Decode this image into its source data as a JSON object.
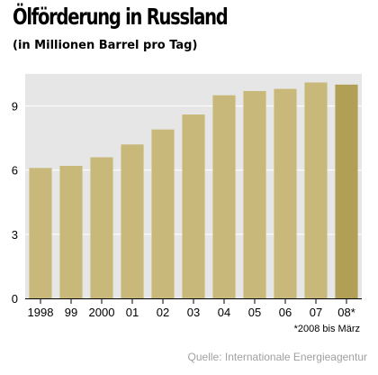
{
  "title": "Ölförderung in Russland",
  "subtitle": "(in Millionen Barrel pro Tag)",
  "footnote": "*2008 bis März",
  "source": "Quelle: Internationale Energieagentur",
  "colors": {
    "bar": "#c8b97a",
    "bar_highlight": "#b09f55",
    "plot_background": "#e6e6e6",
    "gridline": "#ffffff"
  },
  "chart_data": {
    "type": "bar",
    "categories": [
      "1998",
      "99",
      "2000",
      "01",
      "02",
      "03",
      "04",
      "05",
      "06",
      "07",
      "08*"
    ],
    "values": [
      6.1,
      6.2,
      6.6,
      7.2,
      7.9,
      8.6,
      9.5,
      9.7,
      9.8,
      10.1,
      10.0
    ],
    "highlight_index": 10,
    "yticks": [
      0,
      3,
      6,
      9
    ],
    "ylim": [
      0,
      10.5
    ],
    "grid": true,
    "xlabel": "",
    "ylabel": ""
  }
}
